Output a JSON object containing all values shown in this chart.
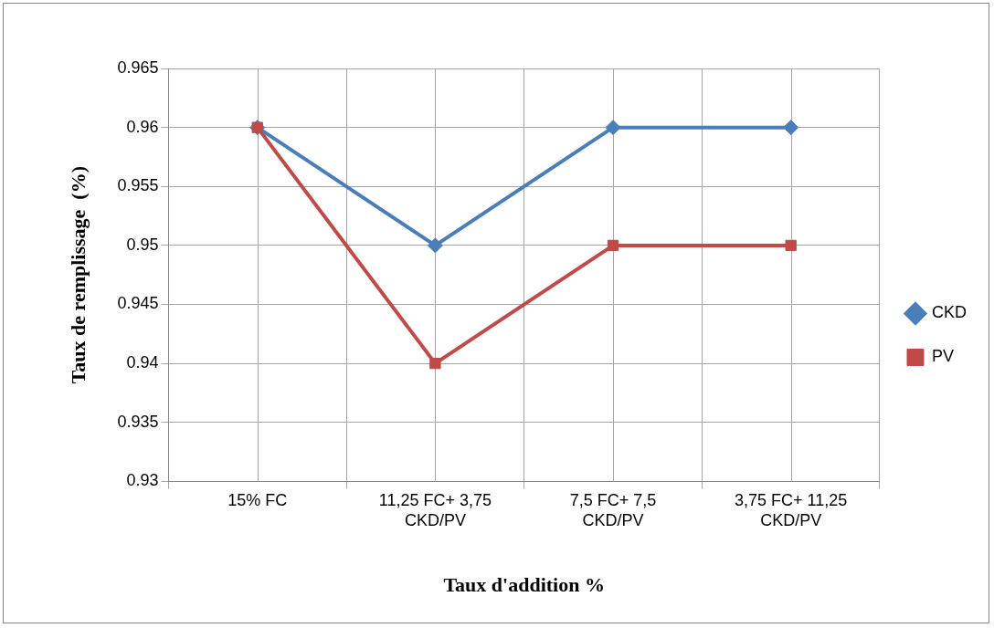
{
  "chart_data": {
    "type": "line",
    "xlabel": "Taux d'addition %",
    "ylabel": "Taux de remplissage  (%)",
    "categories": [
      "15% FC",
      "11,25 FC+ 3,75 CKD/PV",
      "7,5 FC+ 7,5 CKD/PV",
      "3,75 FC+ 11,25 CKD/PV"
    ],
    "series": [
      {
        "name": "CKD",
        "color": "#4a7ebb",
        "marker": "diamond",
        "values": [
          0.96,
          0.95,
          0.96,
          0.96
        ]
      },
      {
        "name": "PV",
        "color": "#be4b48",
        "marker": "square",
        "values": [
          0.96,
          0.94,
          0.95,
          0.95
        ]
      }
    ],
    "ylim": [
      0.93,
      0.965
    ],
    "yticks": [
      0.93,
      0.935,
      0.94,
      0.945,
      0.95,
      0.955,
      0.96,
      0.965
    ],
    "grid": true,
    "legend": "right",
    "line_style": "solid"
  }
}
